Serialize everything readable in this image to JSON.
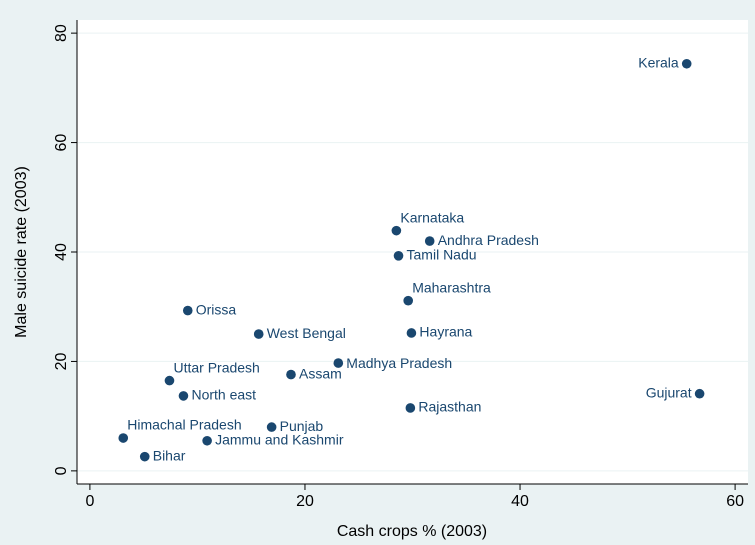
{
  "chart_data": {
    "type": "scatter",
    "xlabel": "Cash crops % (2003)",
    "ylabel": "Male suicide rate (2003)",
    "labels": [
      "Kerala",
      "Gujurat",
      "Karnataka",
      "Andhra Pradesh",
      "Tamil Nadu",
      "Maharashtra",
      "Hayrana",
      "Rajasthan",
      "Madhya Pradesh",
      "Assam",
      "West Bengal",
      "Orissa",
      "Uttar Pradesh",
      "North east",
      "Himachal Pradesh",
      "Bihar",
      "Jammu and Kashmir",
      "Punjab"
    ],
    "x": [
      55.5,
      56.7,
      28.5,
      31.6,
      28.7,
      29.6,
      29.9,
      29.8,
      23.1,
      18.7,
      15.7,
      9.1,
      7.4,
      8.7,
      3.1,
      5.1,
      10.9,
      16.9
    ],
    "values": [
      74.4,
      14.1,
      43.9,
      42.0,
      39.3,
      31.1,
      25.2,
      11.5,
      19.7,
      17.6,
      25.0,
      29.3,
      16.5,
      13.7,
      6.0,
      2.6,
      5.5,
      8.0
    ],
    "color": "#1a476f",
    "xlim": [
      -1.2,
      61.2
    ],
    "xticks": [
      0,
      20,
      40,
      60
    ],
    "ylim": [
      -2.4,
      82.4
    ],
    "yticks": [
      0,
      20,
      40,
      60,
      80
    ],
    "grid": true
  }
}
